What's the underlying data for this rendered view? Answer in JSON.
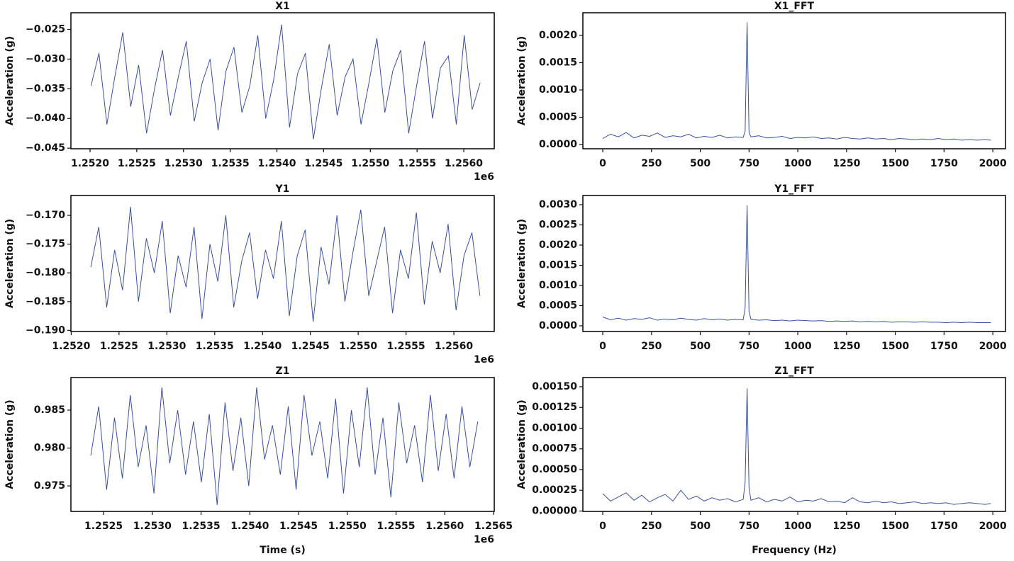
{
  "chart_data": [
    {
      "type": "line",
      "title": "X1",
      "ylabel": "Acceleration (g)",
      "color": "#3a4fa3",
      "x_offset_text": "1e6",
      "x": [
        1252010,
        1252095,
        1252180,
        1252265,
        1252350,
        1252435,
        1252520,
        1252605,
        1252690,
        1252775,
        1252860,
        1252945,
        1253030,
        1253115,
        1253200,
        1253285,
        1253370,
        1253455,
        1253540,
        1253625,
        1253710,
        1253795,
        1253880,
        1253965,
        1254050,
        1254135,
        1254220,
        1254305,
        1254390,
        1254475,
        1254560,
        1254645,
        1254730,
        1254815,
        1254900,
        1254985,
        1255070,
        1255155,
        1255240,
        1255325,
        1255410,
        1255495,
        1255580,
        1255665,
        1255750,
        1255835,
        1255920,
        1256005,
        1256090,
        1256175
      ],
      "values": [
        -0.0345,
        -0.029,
        -0.041,
        -0.033,
        -0.0255,
        -0.038,
        -0.031,
        -0.0425,
        -0.035,
        -0.0285,
        -0.0395,
        -0.033,
        -0.027,
        -0.0405,
        -0.034,
        -0.03,
        -0.042,
        -0.032,
        -0.028,
        -0.039,
        -0.0345,
        -0.026,
        -0.04,
        -0.0335,
        -0.0242,
        -0.0415,
        -0.0325,
        -0.029,
        -0.0435,
        -0.035,
        -0.0275,
        -0.0395,
        -0.033,
        -0.03,
        -0.041,
        -0.034,
        -0.0265,
        -0.039,
        -0.032,
        -0.0285,
        -0.0425,
        -0.0345,
        -0.027,
        -0.04,
        -0.0315,
        -0.0295,
        -0.041,
        -0.026,
        -0.0385,
        -0.034
      ],
      "xlim": [
        1251795,
        1256326
      ],
      "ylim": [
        -0.0451,
        -0.0222
      ],
      "xticks": [
        {
          "value": 1252000,
          "label": "1.2520"
        },
        {
          "value": 1252500,
          "label": "1.2525"
        },
        {
          "value": 1253000,
          "label": "1.2530"
        },
        {
          "value": 1253500,
          "label": "1.2535"
        },
        {
          "value": 1254000,
          "label": "1.2540"
        },
        {
          "value": 1254500,
          "label": "1.2545"
        },
        {
          "value": 1255000,
          "label": "1.2550"
        },
        {
          "value": 1255500,
          "label": "1.2555"
        },
        {
          "value": 1256000,
          "label": "1.2560"
        }
      ],
      "yticks": [
        {
          "value": -0.045,
          "label": "−0.045"
        },
        {
          "value": -0.04,
          "label": "−0.040"
        },
        {
          "value": -0.035,
          "label": "−0.035"
        },
        {
          "value": -0.03,
          "label": "−0.030"
        },
        {
          "value": -0.025,
          "label": "−0.025"
        }
      ]
    },
    {
      "type": "line",
      "title": "X1_FFT",
      "ylabel": "Acceleration (g)",
      "color": "#3a4fa3",
      "x": [
        0,
        40,
        80,
        120,
        160,
        200,
        240,
        280,
        320,
        360,
        400,
        440,
        480,
        520,
        560,
        600,
        640,
        680,
        720,
        730,
        740,
        750,
        760,
        800,
        840,
        880,
        920,
        960,
        1000,
        1040,
        1080,
        1120,
        1160,
        1200,
        1240,
        1280,
        1320,
        1360,
        1400,
        1440,
        1480,
        1520,
        1560,
        1600,
        1640,
        1680,
        1720,
        1760,
        1800,
        1840,
        1880,
        1920,
        1960,
        1990
      ],
      "values": [
        0.00011,
        0.00019,
        0.00014,
        0.00022,
        0.00012,
        0.00017,
        0.00015,
        0.00021,
        0.00013,
        0.00016,
        0.00014,
        0.00019,
        0.00012,
        0.00015,
        0.00013,
        0.00017,
        0.00012,
        0.00014,
        0.00013,
        0.00025,
        0.00224,
        0.00022,
        0.00014,
        0.00016,
        0.00012,
        0.00013,
        0.00015,
        0.00011,
        0.00013,
        0.00012,
        0.00014,
        0.00011,
        0.00012,
        0.0001,
        0.00013,
        0.00011,
        0.0001,
        0.00012,
        0.0001,
        0.00011,
        9e-05,
        0.00011,
        0.0001,
        9e-05,
        0.0001,
        9e-05,
        0.00011,
        9e-05,
        0.0001,
        8e-05,
        9e-05,
        8e-05,
        9e-05,
        8e-05
      ],
      "xlim": [
        -102,
        2065
      ],
      "ylim": [
        -7.8e-05,
        0.002416
      ],
      "xticks": [
        0,
        250,
        500,
        750,
        1000,
        1250,
        1500,
        1750,
        2000
      ],
      "yticks": [
        {
          "value": 0,
          "label": "0.0000"
        },
        {
          "value": 0.0005,
          "label": "0.0005"
        },
        {
          "value": 0.001,
          "label": "0.0010"
        },
        {
          "value": 0.0015,
          "label": "0.0015"
        },
        {
          "value": 0.002,
          "label": "0.0020"
        }
      ]
    },
    {
      "type": "line",
      "title": "Y1",
      "ylabel": "Acceleration (g)",
      "color": "#3a4fa3",
      "x_offset_text": "1e6",
      "x": [
        1252205,
        1252288,
        1252371,
        1252454,
        1252537,
        1252620,
        1252703,
        1252786,
        1252869,
        1252952,
        1253035,
        1253118,
        1253201,
        1253284,
        1253367,
        1253450,
        1253533,
        1253616,
        1253699,
        1253782,
        1253865,
        1253948,
        1254031,
        1254114,
        1254197,
        1254280,
        1254363,
        1254446,
        1254529,
        1254612,
        1254695,
        1254778,
        1254861,
        1254944,
        1255027,
        1255110,
        1255193,
        1255276,
        1255359,
        1255442,
        1255525,
        1255608,
        1255691,
        1255774,
        1255857,
        1255940,
        1256023,
        1256106,
        1256189,
        1256272
      ],
      "values": [
        -0.179,
        -0.172,
        -0.186,
        -0.176,
        -0.183,
        -0.1685,
        -0.185,
        -0.174,
        -0.18,
        -0.171,
        -0.187,
        -0.177,
        -0.1825,
        -0.172,
        -0.188,
        -0.175,
        -0.1815,
        -0.17,
        -0.186,
        -0.178,
        -0.173,
        -0.1845,
        -0.176,
        -0.181,
        -0.171,
        -0.1875,
        -0.177,
        -0.1725,
        -0.1885,
        -0.1755,
        -0.182,
        -0.17,
        -0.185,
        -0.1765,
        -0.169,
        -0.184,
        -0.178,
        -0.172,
        -0.187,
        -0.176,
        -0.181,
        -0.1695,
        -0.1855,
        -0.1745,
        -0.18,
        -0.1715,
        -0.1865,
        -0.177,
        -0.173,
        -0.184
      ],
      "xlim": [
        1251997,
        1256422
      ],
      "ylim": [
        -0.1902,
        -0.16654
      ],
      "xticks": [
        {
          "value": 1252000,
          "label": "1.2520"
        },
        {
          "value": 1252500,
          "label": "1.2525"
        },
        {
          "value": 1253000,
          "label": "1.2530"
        },
        {
          "value": 1253500,
          "label": "1.2535"
        },
        {
          "value": 1254000,
          "label": "1.2540"
        },
        {
          "value": 1254500,
          "label": "1.2545"
        },
        {
          "value": 1255000,
          "label": "1.2550"
        },
        {
          "value": 1255500,
          "label": "1.2555"
        },
        {
          "value": 1256000,
          "label": "1.2560"
        }
      ],
      "yticks": [
        {
          "value": -0.19,
          "label": "−0.190"
        },
        {
          "value": -0.185,
          "label": "−0.185"
        },
        {
          "value": -0.18,
          "label": "−0.180"
        },
        {
          "value": -0.175,
          "label": "−0.175"
        },
        {
          "value": -0.17,
          "label": "−0.170"
        }
      ]
    },
    {
      "type": "line",
      "title": "Y1_FFT",
      "ylabel": "Acceleration (g)",
      "color": "#3a4fa3",
      "x": [
        0,
        40,
        80,
        120,
        160,
        200,
        240,
        280,
        320,
        360,
        400,
        440,
        480,
        520,
        560,
        600,
        640,
        680,
        720,
        730,
        740,
        750,
        760,
        800,
        840,
        880,
        920,
        960,
        1000,
        1040,
        1080,
        1120,
        1160,
        1200,
        1240,
        1280,
        1320,
        1360,
        1400,
        1440,
        1480,
        1520,
        1560,
        1600,
        1640,
        1680,
        1720,
        1760,
        1800,
        1840,
        1880,
        1920,
        1960,
        1990
      ],
      "values": [
        0.00022,
        0.00015,
        0.00019,
        0.00014,
        0.00018,
        0.00016,
        0.0002,
        0.00014,
        0.00017,
        0.00015,
        0.00019,
        0.00016,
        0.00014,
        0.00018,
        0.00015,
        0.00017,
        0.00014,
        0.00016,
        0.00015,
        0.00045,
        0.00298,
        0.00035,
        0.00016,
        0.00014,
        0.00015,
        0.00013,
        0.00014,
        0.00012,
        0.00014,
        0.00013,
        0.00012,
        0.00013,
        0.00011,
        0.00012,
        0.00011,
        0.00012,
        0.0001,
        0.00011,
        0.0001,
        0.00011,
        9e-05,
        0.0001,
        0.0001,
        9e-05,
        0.0001,
        9e-05,
        9e-05,
        8e-05,
        9e-05,
        8e-05,
        9e-05,
        8e-05,
        8e-05,
        8e-05
      ],
      "xlim": [
        -102,
        2065
      ],
      "ylim": [
        -0.00014,
        0.003228
      ],
      "xticks": [
        0,
        250,
        500,
        750,
        1000,
        1250,
        1500,
        1750,
        2000
      ],
      "yticks": [
        {
          "value": 0,
          "label": "0.0000"
        },
        {
          "value": 0.0005,
          "label": "0.0005"
        },
        {
          "value": 0.001,
          "label": "0.0010"
        },
        {
          "value": 0.0015,
          "label": "0.0015"
        },
        {
          "value": 0.002,
          "label": "0.0020"
        },
        {
          "value": 0.0025,
          "label": "0.0025"
        },
        {
          "value": 0.003,
          "label": "0.0030"
        }
      ]
    },
    {
      "type": "line",
      "title": "Z1",
      "ylabel": "Acceleration (g)",
      "xlabel": "Time (s)",
      "color": "#3a4fa3",
      "x_offset_text": "1e6",
      "x": [
        1252369,
        1252450,
        1252531,
        1252612,
        1252693,
        1252774,
        1252855,
        1252936,
        1253017,
        1253098,
        1253179,
        1253260,
        1253341,
        1253422,
        1253503,
        1253584,
        1253665,
        1253746,
        1253827,
        1253908,
        1253989,
        1254070,
        1254151,
        1254232,
        1254313,
        1254394,
        1254475,
        1254556,
        1254637,
        1254718,
        1254799,
        1254880,
        1254961,
        1255042,
        1255123,
        1255204,
        1255285,
        1255366,
        1255447,
        1255528,
        1255609,
        1255690,
        1255771,
        1255852,
        1255933,
        1256014,
        1256095,
        1256176,
        1256257,
        1256338
      ],
      "values": [
        0.979,
        0.9855,
        0.9745,
        0.984,
        0.976,
        0.987,
        0.9775,
        0.983,
        0.974,
        0.988,
        0.978,
        0.985,
        0.9765,
        0.9835,
        0.9755,
        0.9845,
        0.9725,
        0.986,
        0.977,
        0.984,
        0.975,
        0.988,
        0.9785,
        0.983,
        0.9765,
        0.9855,
        0.9745,
        0.987,
        0.979,
        0.9835,
        0.976,
        0.9865,
        0.974,
        0.985,
        0.9775,
        0.988,
        0.9765,
        0.984,
        0.9735,
        0.986,
        0.978,
        0.983,
        0.9755,
        0.987,
        0.977,
        0.9845,
        0.976,
        0.9855,
        0.9775,
        0.9835
      ],
      "xlim": [
        1252165,
        1256507
      ],
      "ylim": [
        0.97164,
        0.9893
      ],
      "xticks": [
        {
          "value": 1252500,
          "label": "1.2525"
        },
        {
          "value": 1253000,
          "label": "1.2530"
        },
        {
          "value": 1253500,
          "label": "1.2535"
        },
        {
          "value": 1254000,
          "label": "1.2540"
        },
        {
          "value": 1254500,
          "label": "1.2545"
        },
        {
          "value": 1255000,
          "label": "1.2550"
        },
        {
          "value": 1255500,
          "label": "1.2555"
        },
        {
          "value": 1256000,
          "label": "1.2560"
        },
        {
          "value": 1256500,
          "label": "1.2565"
        }
      ],
      "yticks": [
        {
          "value": 0.975,
          "label": "0.975"
        },
        {
          "value": 0.98,
          "label": "0.980"
        },
        {
          "value": 0.985,
          "label": "0.985"
        }
      ]
    },
    {
      "type": "line",
      "title": "Z1_FFT",
      "ylabel": "Acceleration (g)",
      "xlabel": "Frequency (Hz)",
      "color": "#3a4fa3",
      "x": [
        0,
        40,
        80,
        120,
        160,
        200,
        240,
        280,
        320,
        360,
        400,
        440,
        480,
        520,
        560,
        600,
        640,
        680,
        720,
        730,
        740,
        750,
        760,
        800,
        840,
        880,
        920,
        960,
        1000,
        1040,
        1080,
        1120,
        1160,
        1200,
        1240,
        1280,
        1320,
        1360,
        1400,
        1440,
        1480,
        1520,
        1560,
        1600,
        1640,
        1680,
        1720,
        1760,
        1800,
        1840,
        1880,
        1920,
        1960,
        1990
      ],
      "values": [
        0.00021,
        0.00012,
        0.00017,
        0.00022,
        0.00013,
        0.00019,
        0.00011,
        0.00016,
        0.0002,
        0.00012,
        0.00025,
        0.00014,
        0.00018,
        0.00012,
        0.00016,
        0.00013,
        0.00015,
        0.00011,
        0.00014,
        0.00035,
        0.00148,
        0.00028,
        0.00013,
        0.00016,
        0.00011,
        0.00014,
        0.00012,
        0.00017,
        0.00011,
        0.00013,
        0.00012,
        0.00015,
        0.00011,
        0.00012,
        0.0001,
        0.00016,
        0.00011,
        0.0001,
        0.00012,
        0.0001,
        0.00011,
        9e-05,
        0.0001,
        0.00011,
        9e-05,
        0.0001,
        9e-05,
        0.0001,
        8e-05,
        9e-05,
        0.0001,
        9e-05,
        8e-05,
        9e-05
      ],
      "xlim": [
        -102,
        2065
      ],
      "ylim": [
        -5e-06,
        0.001611
      ],
      "xticks": [
        0,
        250,
        500,
        750,
        1000,
        1250,
        1500,
        1750,
        2000
      ],
      "yticks": [
        {
          "value": 0,
          "label": "0.00000"
        },
        {
          "value": 0.00025,
          "label": "0.00025"
        },
        {
          "value": 0.0005,
          "label": "0.00050"
        },
        {
          "value": 0.00075,
          "label": "0.00075"
        },
        {
          "value": 0.001,
          "label": "0.00100"
        },
        {
          "value": 0.00125,
          "label": "0.00125"
        },
        {
          "value": 0.0015,
          "label": "0.00150"
        }
      ]
    }
  ]
}
